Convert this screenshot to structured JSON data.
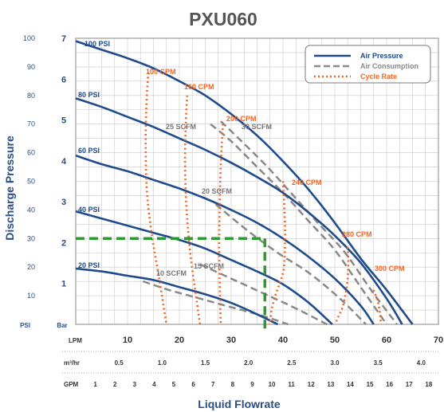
{
  "chart_data": {
    "type": "line",
    "title": "PXU060",
    "xlabel": "Liquid Flowrate",
    "ylabel": "Discharge Pressure",
    "psi_unit": "PSI",
    "bar_unit": "Bar",
    "x_units": {
      "lpm": "LPM",
      "m3hr": "m³/hr",
      "gpm": "GPM"
    },
    "xlim": [
      0,
      70
    ],
    "ylim": [
      0,
      100
    ],
    "lpm_ticks": [
      "10",
      "20",
      "30",
      "40",
      "50",
      "60",
      "70"
    ],
    "m3hr_ticks": [
      "0.5",
      "1.0",
      "1.5",
      "2.0",
      "2.5",
      "3.0",
      "3.5",
      "4.0"
    ],
    "gpm_ticks": [
      "1",
      "2",
      "3",
      "4",
      "5",
      "6",
      "7",
      "8",
      "9",
      "10",
      "11",
      "12",
      "13",
      "14",
      "15",
      "16",
      "17",
      "18"
    ],
    "psi_ticks": [
      "10",
      "20",
      "30",
      "40",
      "50",
      "60",
      "70",
      "80",
      "90",
      "100"
    ],
    "bar_ticks": [
      "1",
      "2",
      "3",
      "4",
      "5",
      "6",
      "7"
    ],
    "legend": [
      {
        "name": "Air Pressure",
        "color": "#1e4b8c",
        "style": "solid"
      },
      {
        "name": "Air Consumption",
        "color": "#888888",
        "style": "dashed"
      },
      {
        "name": "Cycle Rate",
        "color": "#f26522",
        "style": "dotted"
      }
    ],
    "legend_position": "top-right",
    "air_pressure": [
      {
        "name": "100 PSI",
        "x": [
          0,
          5,
          10,
          15,
          20,
          25,
          30,
          35,
          40,
          45,
          50,
          55,
          60,
          65
        ],
        "y": [
          99,
          96,
          93,
          89.5,
          85,
          80,
          73.5,
          66,
          57,
          47,
          35.5,
          23,
          12,
          0
        ]
      },
      {
        "name": "80 PSI",
        "x": [
          0,
          5,
          10,
          15,
          20,
          25,
          30,
          35,
          40,
          45,
          50,
          55,
          60,
          63
        ],
        "y": [
          79,
          76,
          72.5,
          69,
          65,
          61,
          56.5,
          51.5,
          46,
          39,
          31,
          21.5,
          9,
          0
        ]
      },
      {
        "name": "60 PSI",
        "x": [
          0,
          5,
          10,
          15,
          20,
          25,
          30,
          35,
          40,
          45,
          50,
          55,
          57.5
        ],
        "y": [
          59,
          56,
          53.5,
          50.5,
          47.5,
          44,
          40,
          35.5,
          30,
          23.5,
          16,
          6.5,
          0
        ]
      },
      {
        "name": "40 PSI",
        "x": [
          0,
          5,
          10,
          15,
          20,
          25,
          30,
          35,
          40,
          45,
          49.5
        ],
        "y": [
          39.5,
          37,
          34.5,
          32,
          29.5,
          26.5,
          22.5,
          18.5,
          14,
          7.5,
          0
        ]
      },
      {
        "name": "20 PSI",
        "x": [
          0,
          5,
          10,
          15,
          20,
          25,
          30,
          35,
          39
        ],
        "y": [
          19.5,
          18.5,
          17,
          15.5,
          13,
          10.5,
          7.5,
          3.5,
          0
        ]
      }
    ],
    "air_consumption": [
      {
        "name": "10 SCFM",
        "x": [
          13,
          18,
          24,
          30,
          36,
          41
        ],
        "y": [
          15,
          12,
          9,
          6,
          3,
          0
        ]
      },
      {
        "name": "15 SCFM",
        "x": [
          24,
          30,
          36,
          42,
          48.5
        ],
        "y": [
          21,
          16,
          11,
          6,
          0
        ]
      },
      {
        "name": "20 SCFM",
        "x": [
          27,
          33,
          39,
          45,
          51,
          56
        ],
        "y": [
          42,
          33,
          25,
          18,
          9,
          0
        ]
      },
      {
        "name": "25 SCFM",
        "x": [
          26,
          30,
          35,
          40,
          45,
          50,
          55,
          60
        ],
        "y": [
          70,
          64,
          55,
          46,
          36,
          26,
          13,
          0
        ]
      },
      {
        "name": "30 SCFM",
        "x": [
          28,
          32,
          37,
          42,
          47,
          52,
          57,
          62
        ],
        "y": [
          71,
          64,
          55,
          45,
          35,
          25,
          12,
          0
        ]
      }
    ],
    "cycle_rate": [
      {
        "name": "100 CPM",
        "x": [
          14,
          13.6,
          13.5,
          13.8,
          14.8,
          16.2,
          17.5
        ],
        "y": [
          88,
          75,
          60,
          45,
          30,
          15,
          0
        ]
      },
      {
        "name": "160 CPM",
        "x": [
          21.5,
          21.2,
          21.1,
          21.4,
          22.1,
          23.2,
          24
        ],
        "y": [
          80,
          68,
          55,
          40,
          25,
          10,
          0
        ]
      },
      {
        "name": "200 CPM",
        "x": [
          28.4,
          28,
          27.8,
          27.7,
          27.8,
          28
        ],
        "y": [
          70,
          56,
          42,
          28,
          14,
          0
        ]
      },
      {
        "name": "240 CPM",
        "x": [
          40,
          40.3,
          40.4,
          40.2,
          39.5,
          38.5,
          37.8,
          37.5
        ],
        "y": [
          50,
          40,
          30,
          20,
          15,
          10,
          5,
          0
        ]
      },
      {
        "name": "280 CPM",
        "x": [
          52.5,
          52.6,
          52.3,
          51.5,
          50.5,
          50.2
        ],
        "y": [
          27,
          20,
          13,
          6,
          2,
          0
        ]
      },
      {
        "name": "300 CPM",
        "x": [
          57.5,
          58.3,
          58.7,
          58.9
        ],
        "y": [
          12,
          8,
          4,
          0
        ]
      }
    ],
    "operating_point": {
      "x": 36.5,
      "y": 30,
      "color": "#2e9a32"
    }
  }
}
